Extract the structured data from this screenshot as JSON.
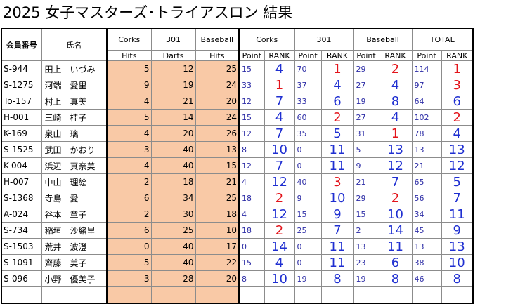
{
  "title": "2025 女子マスターズ･トライアスロン 結果",
  "headers": {
    "member_no": "会員番号",
    "name": "氏名",
    "corks": "Corks",
    "darts301": "301",
    "baseball": "Baseball",
    "total": "TOTAL",
    "hits": "Hits",
    "darts": "Darts",
    "point": "Point",
    "rank": "RANK"
  },
  "rows": [
    {
      "code": "S-944",
      "name": "田上　いづみ",
      "corks_hits": "5",
      "darts": "12",
      "bb_hits": "25",
      "c_pt": "15",
      "c_rk": "4",
      "d_pt": "70",
      "d_rk": "1",
      "b_pt": "29",
      "b_rk": "2",
      "t_pt": "114",
      "t_rk": "1"
    },
    {
      "code": "S-1275",
      "name": "河端　愛里",
      "corks_hits": "9",
      "darts": "19",
      "bb_hits": "24",
      "c_pt": "33",
      "c_rk": "1",
      "d_pt": "37",
      "d_rk": "4",
      "b_pt": "27",
      "b_rk": "4",
      "t_pt": "97",
      "t_rk": "3"
    },
    {
      "code": "To-157",
      "name": "村上　真美",
      "corks_hits": "4",
      "darts": "21",
      "bb_hits": "20",
      "c_pt": "12",
      "c_rk": "7",
      "d_pt": "33",
      "d_rk": "6",
      "b_pt": "19",
      "b_rk": "8",
      "t_pt": "64",
      "t_rk": "6"
    },
    {
      "code": "H-001",
      "name": "三崎　桂子",
      "corks_hits": "5",
      "darts": "14",
      "bb_hits": "24",
      "c_pt": "15",
      "c_rk": "4",
      "d_pt": "60",
      "d_rk": "2",
      "b_pt": "27",
      "b_rk": "4",
      "t_pt": "102",
      "t_rk": "2"
    },
    {
      "code": "K-169",
      "name": "泉山　璃",
      "corks_hits": "4",
      "darts": "20",
      "bb_hits": "26",
      "c_pt": "12",
      "c_rk": "7",
      "d_pt": "35",
      "d_rk": "5",
      "b_pt": "31",
      "b_rk": "1",
      "t_pt": "78",
      "t_rk": "4"
    },
    {
      "code": "S-1525",
      "name": "武田　かおり",
      "corks_hits": "3",
      "darts": "40",
      "bb_hits": "13",
      "c_pt": "8",
      "c_rk": "10",
      "d_pt": "0",
      "d_rk": "11",
      "b_pt": "5",
      "b_rk": "13",
      "t_pt": "13",
      "t_rk": "13"
    },
    {
      "code": "K-004",
      "name": "浜辺　真奈美",
      "corks_hits": "4",
      "darts": "40",
      "bb_hits": "15",
      "c_pt": "12",
      "c_rk": "7",
      "d_pt": "0",
      "d_rk": "11",
      "b_pt": "9",
      "b_rk": "12",
      "t_pt": "21",
      "t_rk": "12"
    },
    {
      "code": "H-007",
      "name": "中山　理絵",
      "corks_hits": "2",
      "darts": "18",
      "bb_hits": "21",
      "c_pt": "4",
      "c_rk": "12",
      "d_pt": "40",
      "d_rk": "3",
      "b_pt": "21",
      "b_rk": "7",
      "t_pt": "65",
      "t_rk": "5"
    },
    {
      "code": "S-1368",
      "name": "寺島　愛",
      "corks_hits": "6",
      "darts": "34",
      "bb_hits": "25",
      "c_pt": "18",
      "c_rk": "2",
      "d_pt": "9",
      "d_rk": "10",
      "b_pt": "29",
      "b_rk": "2",
      "t_pt": "56",
      "t_rk": "7"
    },
    {
      "code": "A-024",
      "name": "谷本　章子",
      "corks_hits": "2",
      "darts": "30",
      "bb_hits": "18",
      "c_pt": "4",
      "c_rk": "12",
      "d_pt": "15",
      "d_rk": "9",
      "b_pt": "15",
      "b_rk": "10",
      "t_pt": "34",
      "t_rk": "11"
    },
    {
      "code": "S-734",
      "name": "稲垣　沙緒里",
      "corks_hits": "6",
      "darts": "25",
      "bb_hits": "10",
      "c_pt": "18",
      "c_rk": "2",
      "d_pt": "25",
      "d_rk": "7",
      "b_pt": "2",
      "b_rk": "14",
      "t_pt": "45",
      "t_rk": "9"
    },
    {
      "code": "S-1503",
      "name": "荒井　波澄",
      "corks_hits": "0",
      "darts": "40",
      "bb_hits": "17",
      "c_pt": "0",
      "c_rk": "14",
      "d_pt": "0",
      "d_rk": "11",
      "b_pt": "13",
      "b_rk": "11",
      "t_pt": "13",
      "t_rk": "13"
    },
    {
      "code": "S-1091",
      "name": "齊藤　美子",
      "corks_hits": "5",
      "darts": "40",
      "bb_hits": "22",
      "c_pt": "15",
      "c_rk": "4",
      "d_pt": "0",
      "d_rk": "11",
      "b_pt": "23",
      "b_rk": "6",
      "t_pt": "38",
      "t_rk": "10"
    },
    {
      "code": "S-096",
      "name": "小野　優美子",
      "corks_hits": "3",
      "darts": "28",
      "bb_hits": "20",
      "c_pt": "8",
      "c_rk": "10",
      "d_pt": "19",
      "d_rk": "8",
      "b_pt": "19",
      "b_rk": "8",
      "t_pt": "46",
      "t_rk": "8"
    }
  ],
  "colors": {
    "input_fill": "#f9c9a6",
    "rank_top3": "#e3141b",
    "rank_other": "#1f2fd1",
    "point_text": "#2d2da6"
  }
}
